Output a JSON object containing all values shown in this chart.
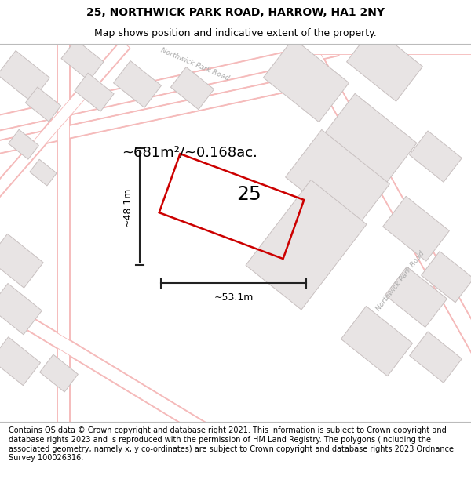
{
  "title_line1": "25, NORTHWICK PARK ROAD, HARROW, HA1 2NY",
  "title_line2": "Map shows position and indicative extent of the property.",
  "footer_text": "Contains OS data © Crown copyright and database right 2021. This information is subject to Crown copyright and database rights 2023 and is reproduced with the permission of HM Land Registry. The polygons (including the associated geometry, namely x, y co-ordinates) are subject to Crown copyright and database rights 2023 Ordnance Survey 100026316.",
  "area_text": "~681m²/~0.168ac.",
  "width_label": "~53.1m",
  "height_label": "~48.1m",
  "property_number": "25",
  "map_bg": "#ffffff",
  "fig_bg": "#ffffff",
  "road_color": "#f5b8b8",
  "road_edge": "#e8a0a0",
  "building_face": "#e8e4e4",
  "building_edge": "#c8c0c0",
  "property_outline_color": "#cc0000",
  "dim_line_color": "#222222",
  "title_fontsize": 10,
  "subtitle_fontsize": 9,
  "footer_fontsize": 7,
  "area_fontsize": 13,
  "number_fontsize": 18,
  "dim_fontsize": 9
}
